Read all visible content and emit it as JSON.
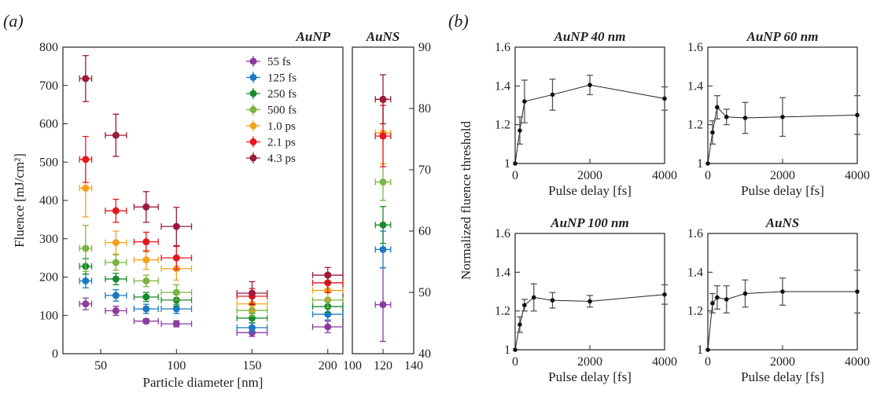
{
  "figure": {
    "panel_a_label": "(a)",
    "panel_b_label": "(b)"
  },
  "chart_data": [
    {
      "type": "scatter",
      "title": "AuNP",
      "xlabel": "Particle diameter [nm]",
      "ylabel": "Fluence [mJ/cm²]",
      "xlim": [
        25,
        210
      ],
      "ylim": [
        0,
        800
      ],
      "xticks": [
        50,
        100,
        150,
        200
      ],
      "yticks": [
        0,
        100,
        200,
        300,
        400,
        500,
        600,
        700,
        800
      ],
      "legend_position": "top-right",
      "x": [
        40,
        60,
        80,
        100,
        150,
        200
      ],
      "series": [
        {
          "name": "55 fs",
          "color": "#8a3b9e",
          "values": [
            130,
            112,
            85,
            78,
            55,
            70
          ],
          "yerr": [
            15,
            12,
            6,
            8,
            10,
            15
          ],
          "xerr": [
            4,
            7,
            8,
            10,
            10,
            10
          ]
        },
        {
          "name": "125 fs",
          "color": "#1b7ac1",
          "values": [
            190,
            152,
            117,
            117,
            68,
            103
          ],
          "yerr": [
            18,
            15,
            12,
            12,
            12,
            15
          ],
          "xerr": [
            4,
            7,
            8,
            10,
            10,
            10
          ]
        },
        {
          "name": "250 fs",
          "color": "#188a2e",
          "values": [
            228,
            195,
            148,
            140,
            93,
            123
          ],
          "yerr": [
            20,
            15,
            12,
            15,
            12,
            15
          ],
          "xerr": [
            4,
            7,
            8,
            10,
            10,
            10
          ]
        },
        {
          "name": "500 fs",
          "color": "#7cb342",
          "values": [
            275,
            238,
            190,
            160,
            113,
            140
          ],
          "yerr": [
            60,
            20,
            15,
            20,
            15,
            20
          ],
          "xerr": [
            4,
            7,
            8,
            10,
            10,
            10
          ]
        },
        {
          "name": "1.0 ps",
          "color": "#f5a11c",
          "values": [
            432,
            290,
            245,
            222,
            130,
            165
          ],
          "yerr": [
            75,
            30,
            25,
            30,
            20,
            25
          ],
          "xerr": [
            4,
            7,
            8,
            10,
            10,
            10
          ]
        },
        {
          "name": "2.1 ps",
          "color": "#e8161e",
          "values": [
            507,
            373,
            292,
            250,
            150,
            185
          ],
          "yerr": [
            60,
            30,
            25,
            30,
            20,
            25
          ],
          "xerr": [
            4,
            7,
            8,
            10,
            10,
            10
          ]
        },
        {
          "name": "4.3 ps",
          "color": "#9b1b3a",
          "values": [
            718,
            570,
            383,
            332,
            158,
            205
          ],
          "yerr": [
            60,
            55,
            40,
            50,
            30,
            20
          ],
          "xerr": [
            4,
            7,
            8,
            10,
            10,
            10
          ]
        }
      ]
    },
    {
      "type": "scatter",
      "title": "AuNS",
      "xlabel": "",
      "ylabel": "",
      "xlim": [
        100,
        140
      ],
      "ylim": [
        40,
        90
      ],
      "xticks": [
        100,
        120,
        140
      ],
      "yticks": [
        40,
        50,
        60,
        70,
        80,
        90
      ],
      "x": [
        120
      ],
      "series": [
        {
          "name": "55 fs",
          "color": "#8a3b9e",
          "values": [
            48
          ],
          "yerr": [
            6
          ],
          "xerr": [
            5
          ]
        },
        {
          "name": "125 fs",
          "color": "#1b7ac1",
          "values": [
            57
          ],
          "yerr": [
            3
          ],
          "xerr": [
            5
          ]
        },
        {
          "name": "250 fs",
          "color": "#188a2e",
          "values": [
            61
          ],
          "yerr": [
            3
          ],
          "xerr": [
            5
          ]
        },
        {
          "name": "500 fs",
          "color": "#7cb342",
          "values": [
            68
          ],
          "yerr": [
            3
          ],
          "xerr": [
            5
          ]
        },
        {
          "name": "1.0 ps",
          "color": "#f5a11c",
          "values": [
            76
          ],
          "yerr": [
            5
          ],
          "xerr": [
            5
          ]
        },
        {
          "name": "2.1 ps",
          "color": "#e8161e",
          "values": [
            75.5
          ],
          "yerr": [
            5
          ],
          "xerr": [
            5
          ]
        },
        {
          "name": "4.3 ps",
          "color": "#9b1b3a",
          "values": [
            81.5
          ],
          "yerr": [
            4
          ],
          "xerr": [
            5
          ]
        }
      ]
    },
    {
      "type": "line",
      "title": "AuNP 40 nm",
      "xlabel": "Pulse delay [fs]",
      "ylabel": "Normalized fluence threshold",
      "xlim": [
        0,
        4000
      ],
      "ylim": [
        1,
        1.6
      ],
      "xticks": [
        0,
        2000,
        4000
      ],
      "yticks": [
        1,
        1.2,
        1.4,
        1.6
      ],
      "x": [
        0,
        125,
        250,
        1000,
        2000,
        4000
      ],
      "values": [
        1.0,
        1.17,
        1.32,
        1.355,
        1.405,
        1.335
      ],
      "yerr": [
        0,
        0.07,
        0.11,
        0.08,
        0.05,
        0.06
      ]
    },
    {
      "type": "line",
      "title": "AuNP 60 nm",
      "xlabel": "Pulse delay [fs]",
      "ylabel": "",
      "xlim": [
        0,
        4000
      ],
      "ylim": [
        1,
        1.6
      ],
      "xticks": [
        0,
        2000,
        4000
      ],
      "yticks": [
        1,
        1.2,
        1.4,
        1.6
      ],
      "x": [
        0,
        125,
        250,
        500,
        1000,
        2000,
        4000
      ],
      "values": [
        1.0,
        1.16,
        1.29,
        1.24,
        1.235,
        1.24,
        1.25
      ],
      "yerr": [
        0,
        0.06,
        0.06,
        0.04,
        0.08,
        0.1,
        0.1
      ]
    },
    {
      "type": "line",
      "title": "AuNP 100 nm",
      "xlabel": "Pulse delay [fs]",
      "ylabel": "",
      "xlim": [
        0,
        4000
      ],
      "ylim": [
        1,
        1.6
      ],
      "xticks": [
        0,
        2000,
        4000
      ],
      "yticks": [
        1,
        1.2,
        1.4,
        1.6
      ],
      "x": [
        0,
        125,
        250,
        500,
        1000,
        2000,
        4000
      ],
      "values": [
        1.0,
        1.13,
        1.23,
        1.27,
        1.255,
        1.25,
        1.285
      ],
      "yerr": [
        0,
        0.04,
        0.03,
        0.07,
        0.04,
        0.03,
        0.05
      ]
    },
    {
      "type": "line",
      "title": "AuNS",
      "xlabel": "Pulse delay [fs]",
      "ylabel": "",
      "xlim": [
        0,
        4000
      ],
      "ylim": [
        1,
        1.6
      ],
      "xticks": [
        0,
        2000,
        4000
      ],
      "yticks": [
        1,
        1.2,
        1.4,
        1.6
      ],
      "x": [
        0,
        125,
        250,
        500,
        1000,
        2000,
        4000
      ],
      "values": [
        1.0,
        1.24,
        1.27,
        1.26,
        1.29,
        1.3,
        1.3
      ],
      "yerr": [
        0,
        0.05,
        0.06,
        0.07,
        0.07,
        0.07,
        0.11
      ]
    }
  ]
}
